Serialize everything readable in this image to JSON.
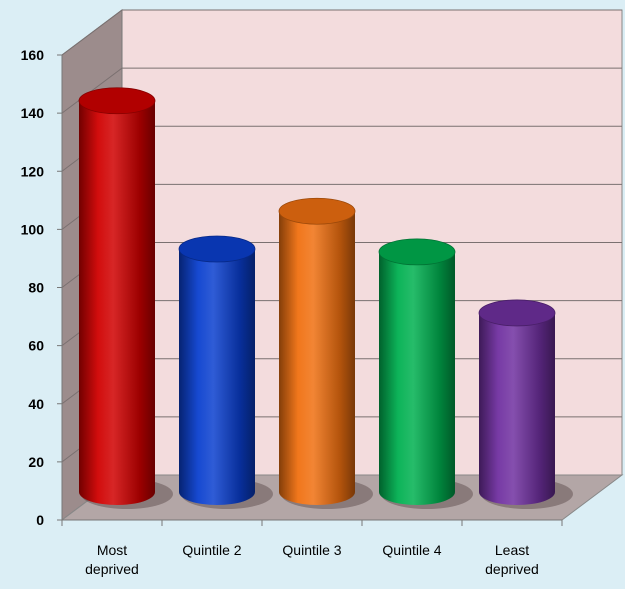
{
  "chart_data": {
    "type": "bar",
    "style": "3d-cylinder",
    "categories": [
      "Most\ndeprived",
      "Quintile 2",
      "Quintile 3",
      "Quintile 4",
      "Least\ndeprived"
    ],
    "values": [
      147,
      96,
      109,
      95,
      74
    ],
    "colors": [
      "#d00000",
      "#0a3fcf",
      "#f07010",
      "#00b050",
      "#7030a0"
    ],
    "title": "",
    "xlabel": "",
    "ylabel": "",
    "ylim": [
      0,
      160
    ],
    "yticks": [
      "0",
      "20",
      "40",
      "60",
      "80",
      "100",
      "120",
      "140",
      "160"
    ],
    "grid": true,
    "legend": "none",
    "background": "#dbeef5",
    "wall_color": "#f3dcdd",
    "side_wall_color": "#9c8c8c",
    "floor_color": "#b3a6a6"
  }
}
